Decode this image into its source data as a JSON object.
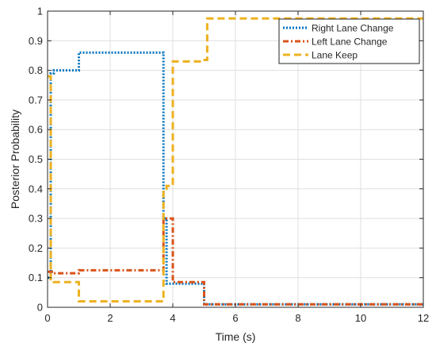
{
  "chart_data": {
    "type": "line",
    "title": "",
    "xlabel": "Time (s)",
    "ylabel": "Posterior Probability",
    "xlim": [
      0,
      12
    ],
    "ylim": [
      0,
      1
    ],
    "xticks": [
      0,
      2,
      4,
      6,
      8,
      10,
      12
    ],
    "yticks": [
      0,
      0.1,
      0.2,
      0.3,
      0.4,
      0.5,
      0.6,
      0.7,
      0.8,
      0.9,
      1
    ],
    "xtick_labels": [
      "0",
      "2",
      "4",
      "6",
      "8",
      "10",
      "12"
    ],
    "ytick_labels": [
      "0",
      "0.1",
      "0.2",
      "0.3",
      "0.4",
      "0.5",
      "0.6",
      "0.7",
      "0.8",
      "0.9",
      "1"
    ],
    "grid": true,
    "legend_position": "top-right",
    "step": true,
    "series": [
      {
        "name": "Right Lane Change",
        "color": "#0072BD",
        "style": "dotted",
        "x": [
          0,
          0.1,
          0.2,
          1.0,
          3.7,
          3.8,
          4.0,
          5.0,
          12
        ],
        "y": [
          0.1,
          0.79,
          0.8,
          0.86,
          0.3,
          0.08,
          0.08,
          0.01,
          0.01
        ]
      },
      {
        "name": "Left Lane Change",
        "color": "#D95319",
        "style": "dashdot",
        "x": [
          0,
          0.2,
          1.0,
          3.7,
          4.0,
          5.0,
          12
        ],
        "y": [
          0.12,
          0.115,
          0.125,
          0.3,
          0.085,
          0.01,
          0.01
        ]
      },
      {
        "name": "Lane Keep",
        "color": "#EDB120",
        "style": "dashed",
        "x": [
          0,
          0.1,
          0.2,
          1.0,
          3.7,
          3.8,
          4.0,
          4.9,
          5.1,
          12
        ],
        "y": [
          0.78,
          0.09,
          0.085,
          0.02,
          0.4,
          0.41,
          0.83,
          0.835,
          0.975,
          0.975
        ]
      }
    ]
  }
}
